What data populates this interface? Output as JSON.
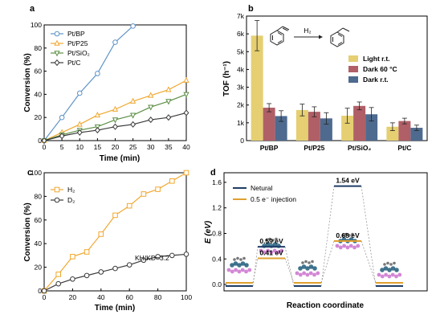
{
  "colors": {
    "blue": "#5d93c7",
    "orange": "#f0a830",
    "green": "#5b8e44",
    "black": "#3a3a3a",
    "light": "#e5cf72",
    "dark60": "#b05f67",
    "darkrt": "#4e6a8f",
    "neutral": "#1f3d66",
    "injection": "#e0a030",
    "molecule": "#1e5a7a",
    "support": "#c45fc7"
  },
  "chart_data": [
    {
      "type": "line",
      "panel": "a",
      "xlabel": "Time (min)",
      "ylabel": "Conversion (%)",
      "xlim": [
        0,
        40
      ],
      "ylim": [
        0,
        100
      ],
      "xticks": [
        "0",
        "5",
        "10",
        "15",
        "20",
        "25",
        "30",
        "35",
        "40"
      ],
      "yticks": [
        "0",
        "20",
        "40",
        "60",
        "80",
        "100"
      ],
      "legend": "top-left",
      "series": [
        {
          "name": "Pt/BP",
          "marker": "circle",
          "x": [
            0,
            5,
            10,
            15,
            20,
            25
          ],
          "y": [
            0,
            20,
            41,
            58,
            85,
            99
          ]
        },
        {
          "name": "Pt/P25",
          "marker": "triangle-up",
          "x": [
            0,
            5,
            10,
            15,
            20,
            25,
            30,
            35,
            40
          ],
          "y": [
            0,
            7,
            14,
            22,
            27,
            34,
            39,
            44,
            52
          ]
        },
        {
          "name": "Pt/SiO₂",
          "marker": "triangle-down",
          "x": [
            0,
            5,
            10,
            15,
            20,
            25,
            30,
            35,
            40
          ],
          "y": [
            0,
            5,
            9,
            12,
            18,
            22,
            29,
            34,
            40
          ]
        },
        {
          "name": "Pt/C",
          "marker": "diamond",
          "x": [
            0,
            5,
            10,
            15,
            20,
            25,
            30,
            35,
            40
          ],
          "y": [
            0,
            4,
            7,
            9,
            12,
            14,
            18,
            20,
            24
          ]
        }
      ]
    },
    {
      "type": "bar",
      "panel": "b",
      "ylabel": "TOF (h⁻¹)",
      "ylim": [
        0,
        7000
      ],
      "yticks": [
        "0",
        "1k",
        "2k",
        "3k",
        "4k",
        "5k",
        "6k",
        "7k"
      ],
      "categories": [
        "Pt/BP",
        "Pt/P25",
        "Pt/SiO₂",
        "Pt/C"
      ],
      "legend": "right",
      "series": [
        {
          "name": "Light r.t.",
          "values": [
            5900,
            1720,
            1400,
            780
          ],
          "errors": [
            850,
            330,
            420,
            220
          ]
        },
        {
          "name": "Dark 60 °C",
          "values": [
            1850,
            1620,
            1950,
            1100
          ],
          "errors": [
            230,
            280,
            220,
            160
          ]
        },
        {
          "name": "Dark r.t.",
          "values": [
            1380,
            1250,
            1480,
            720
          ],
          "errors": [
            300,
            320,
            380,
            150
          ]
        }
      ],
      "reaction_reagent": "H₂"
    },
    {
      "type": "line",
      "panel": "c",
      "xlabel": "Time (min)",
      "ylabel": "Conversion (%)",
      "xlim": [
        0,
        100
      ],
      "ylim": [
        0,
        100
      ],
      "xticks": [
        "0",
        "20",
        "40",
        "60",
        "80",
        "100"
      ],
      "yticks": [
        "0",
        "20",
        "40",
        "60",
        "80",
        "100"
      ],
      "legend": "top-left",
      "annotation": "KH/KD=3.2",
      "series": [
        {
          "name": "H₂",
          "marker": "square",
          "x": [
            0,
            10,
            20,
            30,
            40,
            50,
            60,
            70,
            80,
            90,
            100
          ],
          "y": [
            0,
            14,
            29,
            33,
            48,
            64,
            72,
            82,
            86,
            93,
            100
          ]
        },
        {
          "name": "D₂",
          "marker": "circle",
          "x": [
            0,
            10,
            20,
            30,
            40,
            50,
            60,
            70,
            80,
            90,
            100
          ],
          "y": [
            0,
            6,
            10,
            13,
            16,
            19,
            22,
            26,
            29,
            30,
            31
          ]
        }
      ]
    },
    {
      "type": "line",
      "panel": "d",
      "xlabel": "Reaction coordinate",
      "ylabel": "E (eV)",
      "ylim": [
        -0.1,
        1.75
      ],
      "yticks": [
        "0.0",
        "0.4",
        "0.8",
        "1.2",
        "1.6"
      ],
      "legend": "top-left",
      "series": [
        {
          "name": "Netural",
          "states": [
            0.0,
            0.59,
            0.0,
            1.54,
            0.0
          ],
          "labels": [
            "",
            "0.59 eV",
            "",
            "1.54 eV",
            ""
          ]
        },
        {
          "name": "0.5 e⁻ injection",
          "states": [
            0.0,
            0.41,
            0.0,
            0.68,
            0.0
          ],
          "labels": [
            "",
            "0.41 eV",
            "",
            "0.68 eV",
            ""
          ]
        }
      ]
    }
  ]
}
